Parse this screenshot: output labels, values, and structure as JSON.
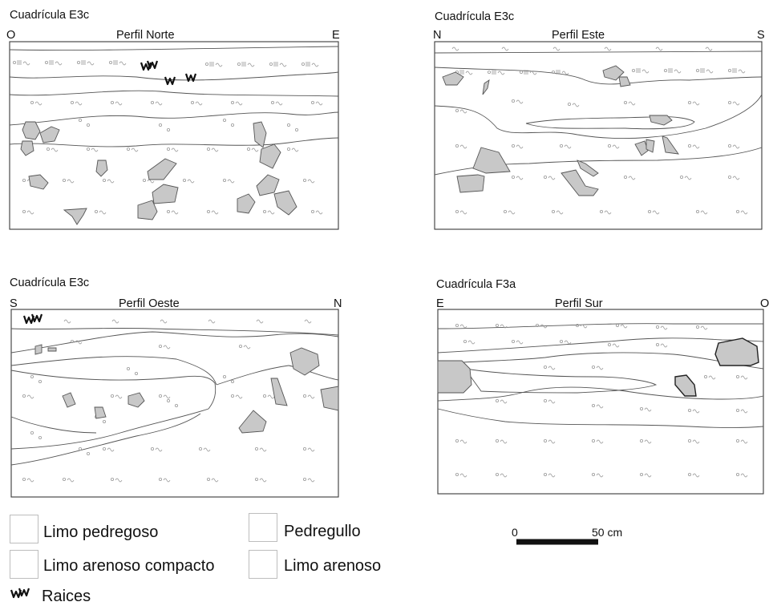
{
  "panels": [
    {
      "id": "norte",
      "grid": "Cuadrícula E3c",
      "perfil": "Perfil Norte",
      "left_dir": "O",
      "right_dir": "E"
    },
    {
      "id": "este",
      "grid": "Cuadrícula E3c",
      "perfil": "Perfil Este",
      "left_dir": "N",
      "right_dir": "S"
    },
    {
      "id": "oeste",
      "grid": "Cuadrícula E3c",
      "perfil": "Perfil Oeste",
      "left_dir": "S",
      "right_dir": "N"
    },
    {
      "id": "sur",
      "grid": "Cuadrícula F3a",
      "perfil": "Perfil Sur",
      "left_dir": "E",
      "right_dir": "O"
    }
  ],
  "legend": {
    "limo_pedregoso": "Limo pedregoso",
    "pedregullo": "Pedregullo",
    "limo_arenoso_compacto": "Limo arenoso compacto",
    "limo_arenoso": "Limo arenoso",
    "raices": "Raices"
  },
  "scale": {
    "start": "0",
    "end": "50 cm"
  }
}
